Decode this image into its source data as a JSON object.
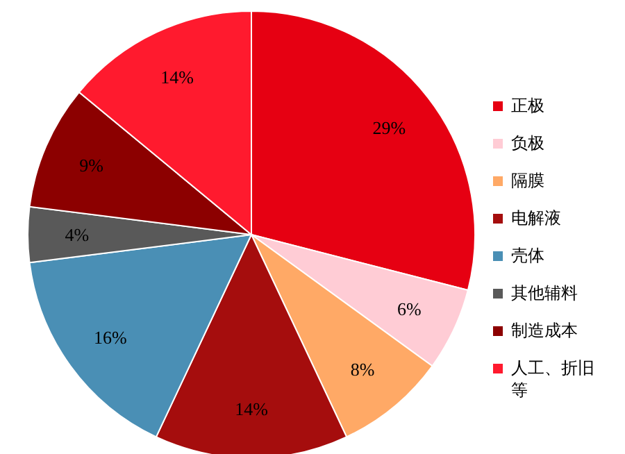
{
  "chart_data": {
    "type": "pie",
    "categories": [
      "正极",
      "负极",
      "隔膜",
      "电解液",
      "壳体",
      "其他辅料",
      "制造成本",
      "人工、折旧等"
    ],
    "values": [
      29,
      6,
      8,
      14,
      16,
      4,
      9,
      14
    ],
    "colors": [
      "#e60012",
      "#ffccd5",
      "#ffa966",
      "#a50d0d",
      "#4a8fb5",
      "#595959",
      "#8c0000",
      "#ff1a2e"
    ],
    "value_labels": [
      "29%",
      "6%",
      "8%",
      "14%",
      "16%",
      "4%",
      "9%",
      "14%"
    ],
    "legend": "right"
  }
}
